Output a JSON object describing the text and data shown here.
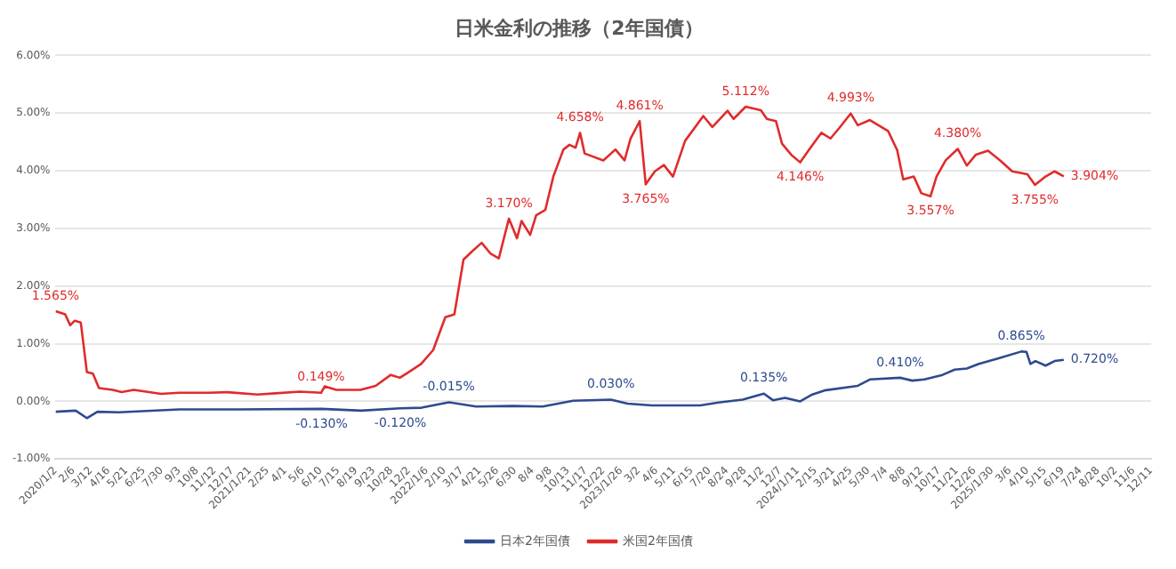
{
  "chart_data": {
    "type": "line",
    "title": "日米金利の推移（2年国債）",
    "ylim": [
      -1,
      6
    ],
    "yticks": [
      {
        "value": -1,
        "label": "-1.00%"
      },
      {
        "value": 0,
        "label": "0.00%"
      },
      {
        "value": 1,
        "label": "1.00%"
      },
      {
        "value": 2,
        "label": "2.00%"
      },
      {
        "value": 3,
        "label": "3.00%"
      },
      {
        "value": 4,
        "label": "4.00%"
      },
      {
        "value": 5,
        "label": "5.00%"
      },
      {
        "value": 6,
        "label": "6.00%"
      }
    ],
    "xlim": [
      "2020-01-02",
      "2025-12-11"
    ],
    "xticks": [
      {
        "value": "2020-01-02",
        "label": "2020/1/2"
      },
      {
        "value": "2020-02-06",
        "label": "2/6"
      },
      {
        "value": "2020-03-12",
        "label": "3/12"
      },
      {
        "value": "2020-04-16",
        "label": "4/16"
      },
      {
        "value": "2020-05-21",
        "label": "5/21"
      },
      {
        "value": "2020-06-25",
        "label": "6/25"
      },
      {
        "value": "2020-07-30",
        "label": "7/30"
      },
      {
        "value": "2020-09-03",
        "label": "9/3"
      },
      {
        "value": "2020-10-08",
        "label": "10/8"
      },
      {
        "value": "2020-11-12",
        "label": "11/12"
      },
      {
        "value": "2020-12-17",
        "label": "12/17"
      },
      {
        "value": "2021-01-21",
        "label": "2021/1/21"
      },
      {
        "value": "2021-02-25",
        "label": "2/25"
      },
      {
        "value": "2021-04-01",
        "label": "4/1"
      },
      {
        "value": "2021-05-06",
        "label": "5/6"
      },
      {
        "value": "2021-06-10",
        "label": "6/10"
      },
      {
        "value": "2021-07-15",
        "label": "7/15"
      },
      {
        "value": "2021-08-19",
        "label": "8/19"
      },
      {
        "value": "2021-09-23",
        "label": "9/23"
      },
      {
        "value": "2021-10-28",
        "label": "10/28"
      },
      {
        "value": "2021-12-02",
        "label": "12/2"
      },
      {
        "value": "2022-01-06",
        "label": "2022/1/6"
      },
      {
        "value": "2022-02-10",
        "label": "2/10"
      },
      {
        "value": "2022-03-17",
        "label": "3/17"
      },
      {
        "value": "2022-04-21",
        "label": "4/21"
      },
      {
        "value": "2022-05-26",
        "label": "5/26"
      },
      {
        "value": "2022-06-30",
        "label": "6/30"
      },
      {
        "value": "2022-08-04",
        "label": "8/4"
      },
      {
        "value": "2022-09-08",
        "label": "9/8"
      },
      {
        "value": "2022-10-13",
        "label": "10/13"
      },
      {
        "value": "2022-11-17",
        "label": "11/17"
      },
      {
        "value": "2022-12-22",
        "label": "12/22"
      },
      {
        "value": "2023-01-26",
        "label": "2023/1/26"
      },
      {
        "value": "2023-03-02",
        "label": "3/2"
      },
      {
        "value": "2023-04-06",
        "label": "4/6"
      },
      {
        "value": "2023-05-11",
        "label": "5/11"
      },
      {
        "value": "2023-06-15",
        "label": "6/15"
      },
      {
        "value": "2023-07-20",
        "label": "7/20"
      },
      {
        "value": "2023-08-24",
        "label": "8/24"
      },
      {
        "value": "2023-09-28",
        "label": "9/28"
      },
      {
        "value": "2023-11-02",
        "label": "11/2"
      },
      {
        "value": "2023-12-07",
        "label": "12/7"
      },
      {
        "value": "2024-01-11",
        "label": "2024/1/11"
      },
      {
        "value": "2024-02-15",
        "label": "2/15"
      },
      {
        "value": "2024-03-21",
        "label": "3/21"
      },
      {
        "value": "2024-04-25",
        "label": "4/25"
      },
      {
        "value": "2024-05-30",
        "label": "5/30"
      },
      {
        "value": "2024-07-04",
        "label": "7/4"
      },
      {
        "value": "2024-08-08",
        "label": "8/8"
      },
      {
        "value": "2024-09-12",
        "label": "9/12"
      },
      {
        "value": "2024-10-17",
        "label": "10/17"
      },
      {
        "value": "2024-11-21",
        "label": "11/21"
      },
      {
        "value": "2024-12-26",
        "label": "12/26"
      },
      {
        "value": "2025-01-30",
        "label": "2025/1/30"
      },
      {
        "value": "2025-03-06",
        "label": "3/6"
      },
      {
        "value": "2025-04-10",
        "label": "4/10"
      },
      {
        "value": "2025-05-15",
        "label": "5/15"
      },
      {
        "value": "2025-06-19",
        "label": "6/19"
      },
      {
        "value": "2025-07-24",
        "label": "7/24"
      },
      {
        "value": "2025-08-28",
        "label": "8/28"
      },
      {
        "value": "2025-10-02",
        "label": "10/2"
      },
      {
        "value": "2025-11-06",
        "label": "11/6"
      },
      {
        "value": "2025-12-11",
        "label": "12/11"
      }
    ],
    "grid": "y",
    "legend": "bottom",
    "marker": "none",
    "line_style": "solid",
    "series": [
      {
        "name": "日本2年国債",
        "color": "#2e4a8f",
        "x": [
          "2020-01-02",
          "2020-02-11",
          "2020-03-04",
          "2020-03-25",
          "2020-05-06",
          "2020-09-03",
          "2021-01-01",
          "2021-06-12",
          "2021-08-29",
          "2021-11-15",
          "2021-12-27",
          "2022-02-19",
          "2022-04-14",
          "2022-06-25",
          "2022-08-24",
          "2022-10-23",
          "2023-01-06",
          "2023-02-08",
          "2023-03-28",
          "2023-07-02",
          "2023-08-07",
          "2023-09-24",
          "2023-11-05",
          "2023-11-23",
          "2023-12-17",
          "2024-01-16",
          "2024-02-09",
          "2024-03-04",
          "2024-05-09",
          "2024-06-02",
          "2024-08-01",
          "2024-08-25",
          "2024-09-18",
          "2024-10-24",
          "2024-11-17",
          "2024-12-11",
          "2025-01-04",
          "2025-02-09",
          "2025-03-29",
          "2025-04-08",
          "2025-04-16",
          "2025-04-26",
          "2025-05-16",
          "2025-06-03",
          "2025-06-21"
        ],
        "values": [
          -0.18,
          -0.16,
          -0.29,
          -0.18,
          -0.19,
          -0.14,
          -0.14,
          -0.13,
          -0.16,
          -0.12,
          -0.11,
          -0.015,
          -0.09,
          -0.08,
          -0.09,
          0.01,
          0.03,
          -0.04,
          -0.07,
          -0.07,
          -0.02,
          0.03,
          0.135,
          0.02,
          0.06,
          0.0,
          0.12,
          0.19,
          0.27,
          0.38,
          0.41,
          0.36,
          0.38,
          0.46,
          0.55,
          0.57,
          0.65,
          0.74,
          0.865,
          0.86,
          0.65,
          0.7,
          0.62,
          0.7,
          0.72
        ]
      },
      {
        "name": "米国2年国債",
        "color": "#e02b2b",
        "x": [
          "2020-01-02",
          "2020-01-21",
          "2020-01-31",
          "2020-02-09",
          "2020-02-21",
          "2020-03-04",
          "2020-03-16",
          "2020-03-28",
          "2020-04-24",
          "2020-05-12",
          "2020-06-05",
          "2020-07-29",
          "2020-09-03",
          "2020-11-01",
          "2020-12-07",
          "2021-02-05",
          "2021-03-13",
          "2021-04-30",
          "2021-06-11",
          "2021-06-18",
          "2021-07-11",
          "2021-08-28",
          "2021-09-27",
          "2021-10-27",
          "2021-11-14",
          "2021-12-02",
          "2021-12-26",
          "2022-01-19",
          "2022-02-12",
          "2022-03-02",
          "2022-03-20",
          "2022-04-07",
          "2022-04-25",
          "2022-05-13",
          "2022-05-29",
          "2022-06-18",
          "2022-07-04",
          "2022-07-13",
          "2022-07-30",
          "2022-08-11",
          "2022-08-29",
          "2022-09-14",
          "2022-10-04",
          "2022-10-16",
          "2022-10-28",
          "2022-11-06",
          "2022-11-15",
          "2022-12-22",
          "2023-01-15",
          "2023-02-02",
          "2023-02-14",
          "2023-03-04",
          "2023-03-16",
          "2023-04-03",
          "2023-04-21",
          "2023-05-09",
          "2023-06-02",
          "2023-07-08",
          "2023-07-26",
          "2023-08-25",
          "2023-09-06",
          "2023-09-30",
          "2023-10-30",
          "2023-11-11",
          "2023-11-29",
          "2023-12-11",
          "2023-12-29",
          "2024-01-16",
          "2024-02-03",
          "2024-02-27",
          "2024-03-16",
          "2024-04-03",
          "2024-04-25",
          "2024-05-09",
          "2024-06-02",
          "2024-07-08",
          "2024-07-26",
          "2024-08-07",
          "2024-08-28",
          "2024-09-12",
          "2024-09-30",
          "2024-10-12",
          "2024-10-30",
          "2024-11-23",
          "2024-12-11",
          "2024-12-29",
          "2025-01-22",
          "2025-02-15",
          "2025-03-11",
          "2025-04-10",
          "2025-04-25",
          "2025-05-16",
          "2025-06-03",
          "2025-06-21"
        ],
        "values": [
          1.565,
          1.51,
          1.32,
          1.4,
          1.37,
          0.51,
          0.48,
          0.23,
          0.2,
          0.16,
          0.2,
          0.13,
          0.15,
          0.15,
          0.16,
          0.12,
          0.14,
          0.17,
          0.149,
          0.26,
          0.2,
          0.2,
          0.27,
          0.46,
          0.41,
          0.51,
          0.65,
          0.89,
          1.46,
          1.51,
          2.46,
          2.61,
          2.75,
          2.56,
          2.48,
          3.17,
          2.83,
          3.13,
          2.89,
          3.23,
          3.32,
          3.9,
          4.37,
          4.45,
          4.4,
          4.658,
          4.3,
          4.18,
          4.37,
          4.18,
          4.56,
          4.861,
          3.765,
          3.99,
          4.1,
          3.9,
          4.52,
          4.95,
          4.76,
          5.04,
          4.9,
          5.112,
          5.05,
          4.9,
          4.86,
          4.47,
          4.28,
          4.146,
          4.37,
          4.66,
          4.56,
          4.75,
          4.993,
          4.79,
          4.88,
          4.69,
          4.36,
          3.85,
          3.9,
          3.61,
          3.557,
          3.9,
          4.18,
          4.38,
          4.09,
          4.28,
          4.35,
          4.18,
          3.99,
          3.94,
          3.755,
          3.9,
          3.99,
          3.904
        ]
      }
    ],
    "annotations": [
      {
        "text": "1.565%",
        "x": "2020-01-02",
        "y": 1.565
      },
      {
        "text": "0.149%",
        "x": "2021-06-11",
        "y": 0.149
      },
      {
        "text": "3.170%",
        "x": "2022-06-18",
        "y": 3.17
      },
      {
        "text": "4.658%",
        "x": "2022-11-06",
        "y": 4.658
      },
      {
        "text": "4.861%",
        "x": "2023-03-04",
        "y": 4.861
      },
      {
        "text": "3.765%",
        "x": "2023-03-16",
        "y": 3.765
      },
      {
        "text": "5.112%",
        "x": "2023-09-30",
        "y": 5.112
      },
      {
        "text": "4.146%",
        "x": "2024-01-16",
        "y": 4.146
      },
      {
        "text": "4.993%",
        "x": "2024-04-25",
        "y": 4.993
      },
      {
        "text": "3.557%",
        "x": "2024-09-30",
        "y": 3.557
      },
      {
        "text": "4.380%",
        "x": "2024-11-23",
        "y": 4.38
      },
      {
        "text": "3.755%",
        "x": "2025-04-25",
        "y": 3.755
      },
      {
        "text": "3.904%",
        "x": "2025-06-21",
        "y": 3.904
      },
      {
        "text": "-0.130%",
        "x": "2021-06-12",
        "y": -0.13
      },
      {
        "text": "-0.120%",
        "x": "2021-11-15",
        "y": -0.12
      },
      {
        "text": "-0.015%",
        "x": "2022-02-19",
        "y": -0.015
      },
      {
        "text": "0.030%",
        "x": "2023-01-06",
        "y": 0.03
      },
      {
        "text": "0.135%",
        "x": "2023-11-05",
        "y": 0.135
      },
      {
        "text": "0.410%",
        "x": "2024-08-01",
        "y": 0.41
      },
      {
        "text": "0.865%",
        "x": "2025-03-29",
        "y": 0.865
      },
      {
        "text": "0.720%",
        "x": "2025-06-21",
        "y": 0.72
      }
    ]
  }
}
